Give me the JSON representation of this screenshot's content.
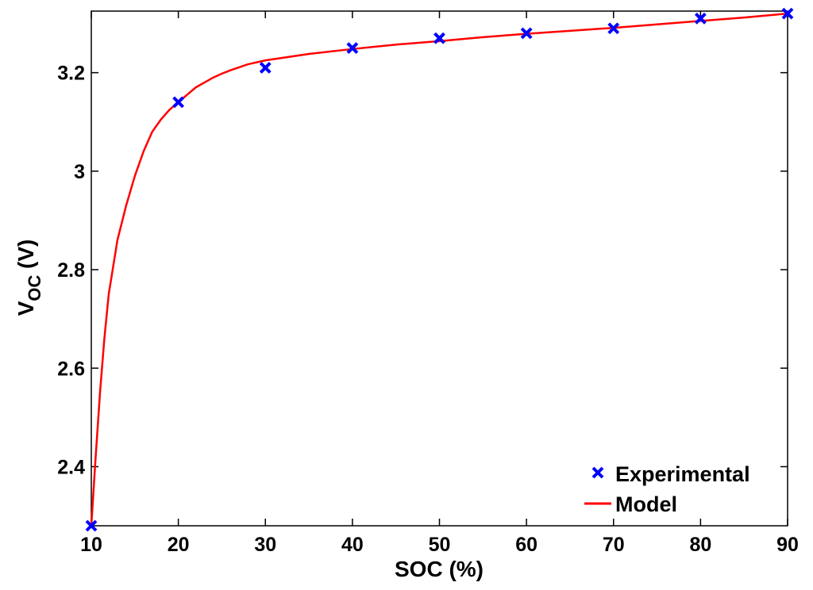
{
  "chart_data": {
    "type": "line",
    "title": "",
    "xlabel": "SOC (%)",
    "ylabel": {
      "main": "V",
      "sub": "OC",
      "unit": " (V)"
    },
    "xlim": [
      10,
      90
    ],
    "ylim": [
      2.28,
      3.325
    ],
    "xticks": [
      10,
      20,
      30,
      40,
      50,
      60,
      70,
      80,
      90
    ],
    "yticks": [
      2.4,
      2.6,
      2.8,
      3.0,
      3.2
    ],
    "ytick_labels": [
      "2.4",
      "2.6",
      "2.8",
      "3",
      "3.2"
    ],
    "grid": false,
    "legend_position": "bottom-right",
    "series": [
      {
        "name": "Experimental",
        "kind": "scatter",
        "marker": "x",
        "color": "#0000ff",
        "x": [
          10,
          20,
          30,
          40,
          50,
          60,
          70,
          80,
          90
        ],
        "y": [
          2.28,
          3.14,
          3.21,
          3.25,
          3.27,
          3.28,
          3.29,
          3.31,
          3.32
        ]
      },
      {
        "name": "Model",
        "kind": "line",
        "color": "#ff0000",
        "x": [
          10,
          10.5,
          11,
          11.5,
          12,
          13,
          14,
          15,
          16,
          17,
          18,
          19,
          20,
          21,
          22,
          23,
          24,
          25,
          26,
          28,
          30,
          35,
          40,
          45,
          50,
          55,
          60,
          65,
          70,
          75,
          80,
          85,
          90
        ],
        "y": [
          2.28,
          2.42,
          2.55,
          2.66,
          2.75,
          2.86,
          2.93,
          2.99,
          3.04,
          3.08,
          3.105,
          3.125,
          3.14,
          3.155,
          3.17,
          3.18,
          3.19,
          3.198,
          3.205,
          3.217,
          3.225,
          3.238,
          3.248,
          3.257,
          3.264,
          3.272,
          3.279,
          3.285,
          3.291,
          3.298,
          3.305,
          3.312,
          3.32
        ]
      }
    ]
  }
}
